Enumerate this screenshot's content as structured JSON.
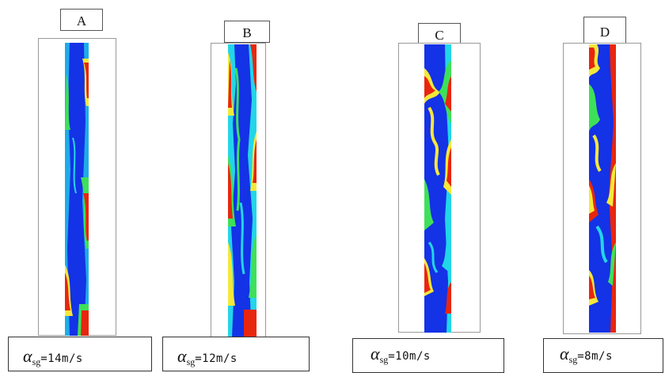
{
  "panels": [
    {
      "label": "A",
      "alpha": "α",
      "sub": "sg",
      "value": "=14m/s"
    },
    {
      "label": "B",
      "alpha": "α",
      "sub": "sg",
      "value": "=12m/s"
    },
    {
      "label": "C",
      "alpha": "α",
      "sub": "sg",
      "value": "=10m/s"
    },
    {
      "label": "D",
      "alpha": "α",
      "sub": "sg",
      "value": "=8m/s"
    }
  ],
  "colors": {
    "blue": "#1432e6",
    "cyan": "#22d6e8",
    "green": "#3ee05a",
    "yellow": "#f4e83a",
    "red": "#e8260e"
  }
}
